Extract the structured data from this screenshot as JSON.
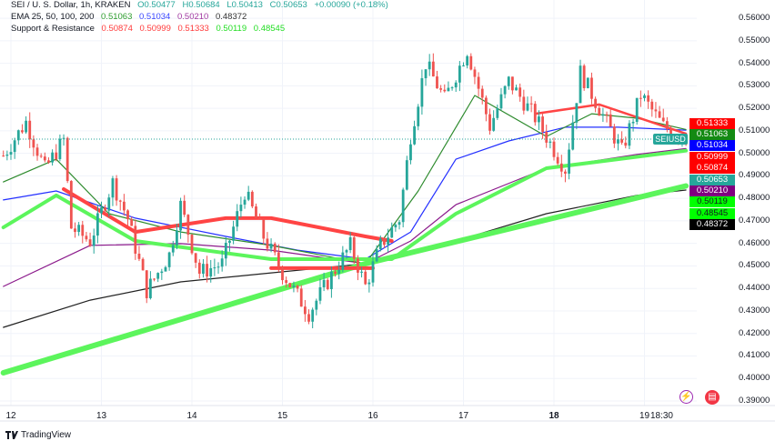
{
  "legend": {
    "line1": {
      "symbol": "SEI / U. S. Dollar, 1h, KRAKEN",
      "open": "O0.50477",
      "high": "H0.50684",
      "low": "L0.50413",
      "close": "C0.50653",
      "change": "+0.00090 (+0.18%)"
    },
    "ema": {
      "label": "EMA 25, 50, 100, 200",
      "values": [
        "0.51063",
        "0.51034",
        "0.50210",
        "0.48372"
      ]
    },
    "sr": {
      "label": "Support & Resistance",
      "values": [
        "0.50874",
        "0.50999",
        "0.51333",
        "0.50119",
        "0.48545"
      ]
    }
  },
  "symbol_tag": "SEIUSD",
  "colors": {
    "up": "#26a69a",
    "down": "#ef5350",
    "ema25": "#2e8b2e",
    "ema50": "#2430ff",
    "ema100": "#8b1a8b",
    "ema200": "#222222",
    "sr_red": "#ff3b3b",
    "sr_green": "#4cff4c",
    "grid": "#f0f3fa"
  },
  "price_tags": [
    {
      "value": "0.51333",
      "color": "#ff0000",
      "text": "#ffffff"
    },
    {
      "value": "0.51063",
      "color": "#138a13",
      "text": "#ffffff"
    },
    {
      "value": "0.51034",
      "color": "#0000ff",
      "text": "#ffffff"
    },
    {
      "value": "0.50999",
      "color": "#ff0000",
      "text": "#ffffff"
    },
    {
      "value": "0.50874",
      "color": "#ff0000",
      "text": "#ffffff"
    },
    {
      "value": "0.50653",
      "color": "#26a69a",
      "text": "#ffffff"
    },
    {
      "value": "0.50210",
      "color": "#800080",
      "text": "#ffffff"
    },
    {
      "value": "0.50119",
      "color": "#00ff00",
      "text": "#131722"
    },
    {
      "value": "0.48545",
      "color": "#00ff00",
      "text": "#131722"
    },
    {
      "value": "0.48372",
      "color": "#000000",
      "text": "#ffffff"
    }
  ],
  "y_axis": {
    "ylim": [
      0.39,
      0.56
    ],
    "ticks": [
      "0.56000",
      "0.55000",
      "0.54000",
      "0.53000",
      "0.52000",
      "0.51000",
      "0.50000",
      "0.49000",
      "0.48000",
      "0.47000",
      "0.46000",
      "0.45000",
      "0.44000",
      "0.43000",
      "0.42000",
      "0.41000",
      "0.40000",
      "0.39000"
    ]
  },
  "x_axis": {
    "ticks": [
      {
        "label": "12",
        "t": "12 00:00"
      },
      {
        "label": "13",
        "t": "13 00:00"
      },
      {
        "label": "14",
        "t": "14 00:00"
      },
      {
        "label": "15",
        "t": "15 00:00"
      },
      {
        "label": "16",
        "t": "16 00:00"
      },
      {
        "label": "17",
        "t": "17 00:00"
      },
      {
        "label": "18",
        "t": "18 00:00",
        "bold": true
      },
      {
        "label": "19",
        "t": "19 00:00"
      },
      {
        "label": "18:30",
        "t": "19 13:30"
      }
    ]
  },
  "price_path": [
    [
      "11 22:00",
      0.499
    ],
    [
      "12 04:00",
      0.514
    ],
    [
      "12 09:00",
      0.493
    ],
    [
      "12 14:00",
      0.506
    ],
    [
      "12 16:00",
      0.467
    ],
    [
      "12 21:00",
      0.461
    ],
    [
      "13 03:00",
      0.487
    ],
    [
      "13 07:00",
      0.471
    ],
    [
      "13 12:00",
      0.439
    ],
    [
      "13 18:00",
      0.455
    ],
    [
      "13 21:00",
      0.477
    ],
    [
      "14 02:00",
      0.447
    ],
    [
      "14 08:00",
      0.451
    ],
    [
      "14 14:00",
      0.483
    ],
    [
      "14 19:00",
      0.463
    ],
    [
      "15 00:00",
      0.447
    ],
    [
      "15 07:00",
      0.429
    ],
    [
      "15 12:00",
      0.443
    ],
    [
      "15 18:00",
      0.459
    ],
    [
      "15 22:00",
      0.441
    ],
    [
      "16 02:00",
      0.459
    ],
    [
      "16 07:00",
      0.471
    ],
    [
      "16 10:00",
      0.508
    ],
    [
      "16 14:00",
      0.54
    ],
    [
      "16 19:00",
      0.524
    ],
    [
      "17 01:00",
      0.546
    ],
    [
      "17 07:00",
      0.512
    ],
    [
      "17 12:00",
      0.532
    ],
    [
      "17 19:00",
      0.516
    ],
    [
      "18 03:00",
      0.493
    ],
    [
      "18 07:00",
      0.536
    ],
    [
      "18 12:00",
      0.52
    ],
    [
      "18 18:00",
      0.501
    ],
    [
      "18 23:00",
      0.526
    ],
    [
      "19 05:00",
      0.512
    ],
    [
      "19 11:00",
      0.5065
    ]
  ],
  "lines": [
    {
      "id": "ema200",
      "color": "#222222",
      "width": 1.2,
      "points": [
        [
          "11 22:00",
          0.4227
        ],
        [
          "12 21:00",
          0.4348
        ],
        [
          "13 21:00",
          0.4429
        ],
        [
          "14 21:00",
          0.4469
        ],
        [
          "15 22:00",
          0.451
        ],
        [
          "16 22:00",
          0.4611
        ],
        [
          "17 22:00",
          0.4732
        ],
        [
          "18 22:00",
          0.4813
        ],
        [
          "19 11:00",
          0.4837
        ]
      ]
    },
    {
      "id": "ema100",
      "color": "#8b1a8b",
      "width": 1.2,
      "points": [
        [
          "11 22:00",
          0.4409
        ],
        [
          "12 21:00",
          0.4591
        ],
        [
          "13 21:00",
          0.4599
        ],
        [
          "14 21:00",
          0.457
        ],
        [
          "15 22:00",
          0.451
        ],
        [
          "16 10:00",
          0.4611
        ],
        [
          "16 22:00",
          0.4772
        ],
        [
          "17 22:00",
          0.4934
        ],
        [
          "18 22:00",
          0.4995
        ],
        [
          "19 11:00",
          0.5021
        ]
      ]
    },
    {
      "id": "ema50",
      "color": "#2430ff",
      "width": 1.2,
      "points": [
        [
          "11 22:00",
          0.4793
        ],
        [
          "12 12:00",
          0.4833
        ],
        [
          "13 09:00",
          0.4712
        ],
        [
          "14 09:00",
          0.4631
        ],
        [
          "15 04:00",
          0.457
        ],
        [
          "15 22:00",
          0.453
        ],
        [
          "16 10:00",
          0.4651
        ],
        [
          "16 22:00",
          0.4974
        ],
        [
          "17 12:00",
          0.5055
        ],
        [
          "18 03:00",
          0.5116
        ],
        [
          "18 17:00",
          0.5116
        ],
        [
          "19 11:00",
          0.5103
        ]
      ]
    },
    {
      "id": "ema25",
      "color": "#2e8b2e",
      "width": 1.2,
      "points": [
        [
          "11 22:00",
          0.4873
        ],
        [
          "12 12:00",
          0.4974
        ],
        [
          "13 02:00",
          0.4732
        ],
        [
          "13 21:00",
          0.4651
        ],
        [
          "14 21:00",
          0.4591
        ],
        [
          "15 22:00",
          0.451
        ],
        [
          "16 12:00",
          0.4833
        ],
        [
          "17 03:00",
          0.5257
        ],
        [
          "17 22:00",
          0.5075
        ],
        [
          "18 10:00",
          0.5176
        ],
        [
          "18 22:00",
          0.5156
        ],
        [
          "19 11:00",
          0.5106
        ]
      ]
    },
    {
      "id": "sr-green-1",
      "color": "#5cf55c",
      "width": 6,
      "points": [
        [
          "11 22:00",
          0.4025
        ],
        [
          "15 22:00",
          0.451
        ],
        [
          "19 11:00",
          0.4855
        ]
      ]
    },
    {
      "id": "sr-green-2",
      "color": "#5cf55c",
      "width": 4,
      "points": [
        [
          "11 22:00",
          0.4671
        ],
        [
          "12 12:00",
          0.4813
        ],
        [
          "13 09:00",
          0.4611
        ],
        [
          "14 21:00",
          0.453
        ],
        [
          "16 05:00",
          0.453
        ],
        [
          "16 22:00",
          0.4732
        ],
        [
          "17 22:00",
          0.4934
        ],
        [
          "19 11:00",
          0.5012
        ]
      ]
    },
    {
      "id": "sr-red-1",
      "color": "#ff4444",
      "width": 4,
      "points": [
        [
          "12 14:00",
          0.4841
        ],
        [
          "13 09:00",
          0.4651
        ],
        [
          "14 09:00",
          0.4712
        ],
        [
          "14 21:00",
          0.4712
        ],
        [
          "15 22:00",
          0.4631
        ],
        [
          "16 05:00",
          0.4611
        ]
      ]
    },
    {
      "id": "sr-red-2",
      "color": "#ff4444",
      "width": 4,
      "points": [
        [
          "14 21:00",
          0.449
        ],
        [
          "16 00:00",
          0.449
        ]
      ]
    },
    {
      "id": "sr-red-3",
      "color": "#ff4444",
      "width": 2.5,
      "points": [
        [
          "17 19:00",
          0.5176
        ],
        [
          "18 12:00",
          0.5217
        ],
        [
          "19 11:00",
          0.5087
        ]
      ]
    }
  ],
  "events": [
    {
      "icon": "lightning-icon",
      "color": "#9c27b0"
    },
    {
      "icon": "us-flag-icon",
      "color": "#f23645"
    }
  ],
  "brand": "TradingView"
}
